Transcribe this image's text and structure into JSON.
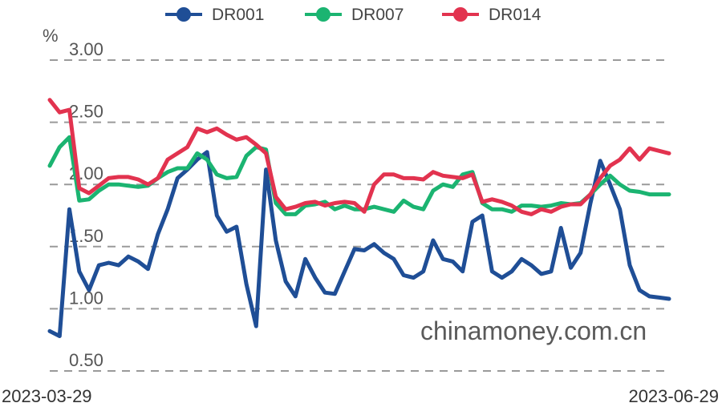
{
  "chart_data": {
    "type": "line",
    "unit_label": "%",
    "x_start_label": "2023-03-29",
    "x_end_label": "2023-06-29",
    "watermark": "chinamoney.com.cn",
    "ylim": [
      0.5,
      3.0
    ],
    "yticks": [
      "0.50",
      "1.00",
      "1.50",
      "2.00",
      "2.50",
      "3.00"
    ],
    "grid": true,
    "legend_position": "top",
    "series": [
      {
        "name": "DR001",
        "color": "#1f4e96",
        "values": [
          0.82,
          0.78,
          1.8,
          1.3,
          1.15,
          1.35,
          1.37,
          1.35,
          1.42,
          1.38,
          1.32,
          1.6,
          1.8,
          2.05,
          2.12,
          2.2,
          2.26,
          1.75,
          1.62,
          1.66,
          1.2,
          0.86,
          2.12,
          1.55,
          1.22,
          1.1,
          1.4,
          1.25,
          1.13,
          1.12,
          1.3,
          1.48,
          1.47,
          1.52,
          1.45,
          1.4,
          1.27,
          1.25,
          1.3,
          1.55,
          1.4,
          1.38,
          1.3,
          1.7,
          1.75,
          1.3,
          1.25,
          1.3,
          1.4,
          1.35,
          1.28,
          1.3,
          1.65,
          1.33,
          1.45,
          1.85,
          2.19,
          2.0,
          1.8,
          1.35,
          1.15,
          1.1,
          1.09,
          1.08
        ]
      },
      {
        "name": "DR007",
        "color": "#1bb471",
        "values": [
          2.15,
          2.3,
          2.38,
          1.87,
          1.88,
          1.95,
          2.0,
          2.0,
          1.99,
          1.98,
          1.99,
          2.05,
          2.1,
          2.13,
          2.13,
          2.25,
          2.2,
          2.08,
          2.05,
          2.06,
          2.23,
          2.3,
          2.28,
          1.85,
          1.76,
          1.76,
          1.83,
          1.84,
          1.86,
          1.8,
          1.83,
          1.8,
          1.8,
          1.82,
          1.8,
          1.78,
          1.87,
          1.82,
          1.8,
          1.95,
          2.0,
          1.98,
          2.08,
          2.1,
          1.85,
          1.8,
          1.8,
          1.78,
          1.83,
          1.83,
          1.82,
          1.83,
          1.85,
          1.84,
          1.85,
          1.92,
          2.0,
          2.07,
          2.0,
          1.95,
          1.94,
          1.92,
          1.92,
          1.92
        ]
      },
      {
        "name": "DR014",
        "color": "#e2334f",
        "values": [
          2.68,
          2.58,
          2.6,
          1.97,
          1.93,
          1.99,
          2.05,
          2.06,
          2.06,
          2.04,
          2.0,
          2.05,
          2.2,
          2.25,
          2.3,
          2.45,
          2.42,
          2.45,
          2.4,
          2.36,
          2.38,
          2.32,
          2.25,
          1.9,
          1.8,
          1.82,
          1.85,
          1.86,
          1.83,
          1.85,
          1.86,
          1.85,
          1.78,
          2.0,
          2.08,
          2.08,
          2.05,
          2.05,
          2.04,
          2.1,
          2.07,
          2.06,
          2.05,
          2.08,
          1.86,
          1.88,
          1.86,
          1.83,
          1.78,
          1.76,
          1.8,
          1.78,
          1.82,
          1.84,
          1.84,
          1.92,
          2.05,
          2.15,
          2.2,
          2.29,
          2.2,
          2.29,
          2.27,
          2.25
        ]
      }
    ]
  }
}
